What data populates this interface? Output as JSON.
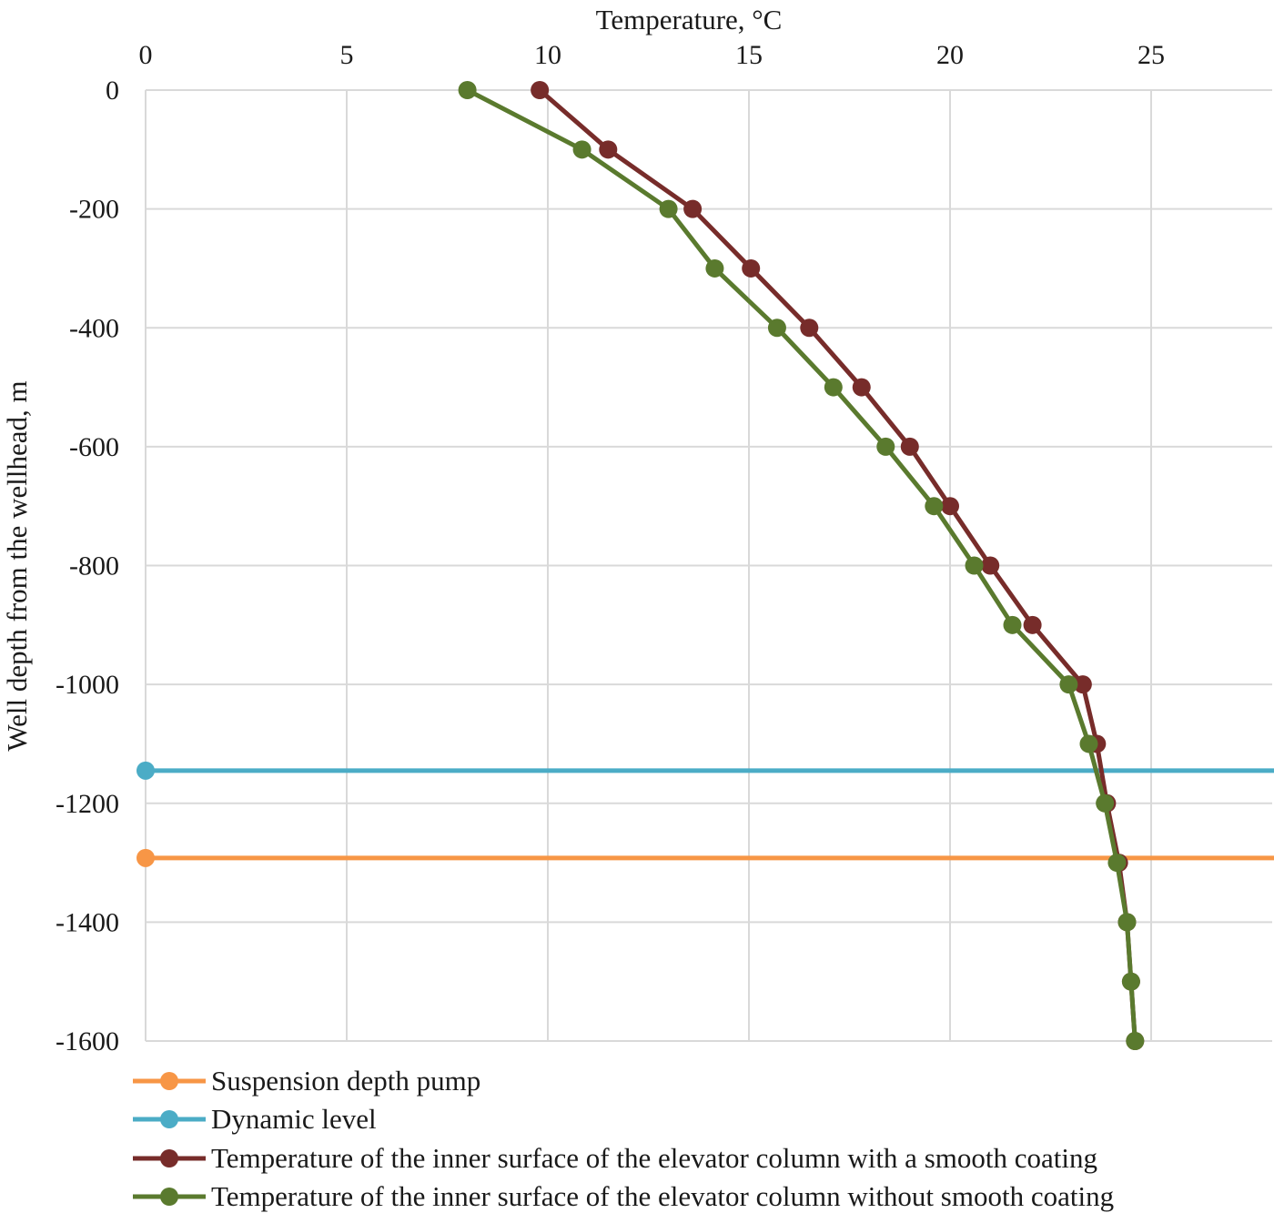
{
  "chart_data": {
    "type": "line",
    "title": "",
    "xlabel": "Temperature, °C",
    "ylabel": "Well depth from the wellhead, m",
    "xlim": [
      0,
      28
    ],
    "ylim": [
      -1600,
      0
    ],
    "xticks": [
      0,
      5,
      10,
      15,
      20,
      25
    ],
    "yticks": [
      0,
      -200,
      -400,
      -600,
      -800,
      -1000,
      -1200,
      -1400,
      -1600
    ],
    "xtick_labels": [
      "0",
      "5",
      "10",
      "15",
      "20",
      "25"
    ],
    "ytick_labels": [
      "0",
      "-200",
      "-400",
      "-600",
      "-800",
      "-1000",
      "-1200",
      "-1400",
      "-1600"
    ],
    "grid": true,
    "x_axis_position": "top",
    "legend_position": "bottom",
    "series": [
      {
        "name": "Suspension depth pump",
        "color": "#f79646",
        "kind": "hline",
        "x": [
          0
        ],
        "y": [
          -1292
        ]
      },
      {
        "name": "Dynamic level",
        "color": "#4bacc6",
        "kind": "hline",
        "x": [
          0
        ],
        "y": [
          -1145
        ]
      },
      {
        "name": "Temperature of the inner surface of the elevator column with a smooth coating",
        "color": "#772c2a",
        "kind": "line",
        "x": [
          9.8,
          11.5,
          13.6,
          15.05,
          16.5,
          17.8,
          19.0,
          20.0,
          21.0,
          22.05,
          23.3,
          23.65,
          23.9,
          24.2,
          24.4,
          24.5,
          24.6
        ],
        "y": [
          0,
          -100,
          -200,
          -300,
          -400,
          -500,
          -600,
          -700,
          -800,
          -900,
          -1000,
          -1100,
          -1200,
          -1300,
          -1400,
          -1500,
          -1600
        ]
      },
      {
        "name": "Temperature of the inner surface of the elevator column without smooth coating",
        "color": "#5a7a2e",
        "kind": "line",
        "x": [
          8.0,
          10.85,
          13.0,
          14.15,
          15.7,
          17.1,
          18.4,
          19.6,
          20.6,
          21.55,
          22.95,
          23.45,
          23.85,
          24.15,
          24.4,
          24.5,
          24.6
        ],
        "y": [
          0,
          -100,
          -200,
          -300,
          -400,
          -500,
          -600,
          -700,
          -800,
          -900,
          -1000,
          -1100,
          -1200,
          -1300,
          -1400,
          -1500,
          -1600
        ]
      }
    ]
  }
}
